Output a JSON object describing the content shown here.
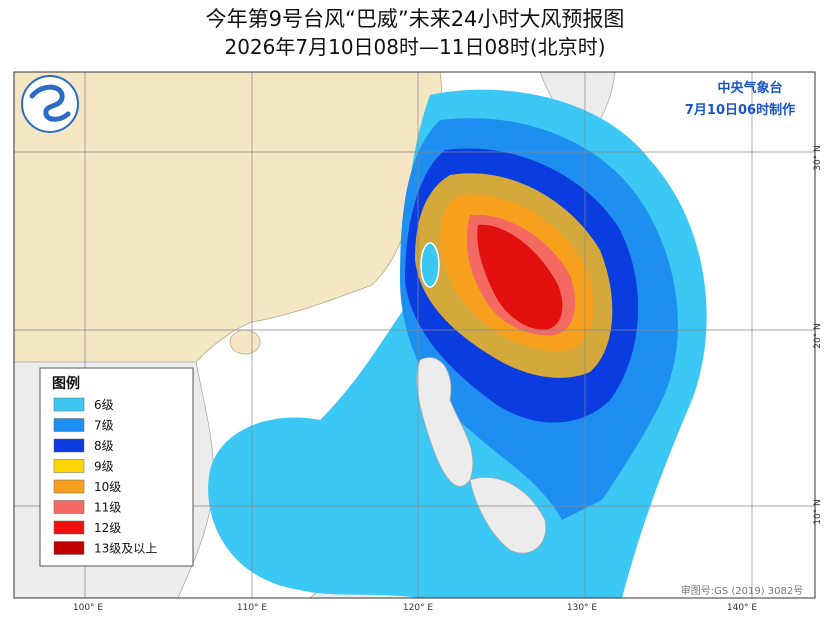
{
  "header": {
    "title": "今年第9号台风“巴威”未来24小时大风预报图",
    "subtitle": "2026年7月10日08时—11日08时(北京时)"
  },
  "map": {
    "agency": "中央气象台",
    "issued": "7月10日06时制作",
    "longitude_labels": [
      "100° E",
      "110° E",
      "120° E",
      "130° E",
      "140° E"
    ],
    "latitude_labels": [
      "30° N",
      "20° N",
      "10° N"
    ],
    "credit": "审图号:GS (2019) 3082号"
  },
  "legend": {
    "title": "图例",
    "items": [
      {
        "label": "6级",
        "color": "#3cc8f5"
      },
      {
        "label": "7级",
        "color": "#1e8ff0"
      },
      {
        "label": "8级",
        "color": "#0a3ce0"
      },
      {
        "label": "9级",
        "color": "#ffd700"
      },
      {
        "label": "10级",
        "color": "#f7a01e"
      },
      {
        "label": "11级",
        "color": "#f46a62"
      },
      {
        "label": "12级",
        "color": "#f01010"
      },
      {
        "label": "13级及以上",
        "color": "#c00000"
      }
    ]
  }
}
